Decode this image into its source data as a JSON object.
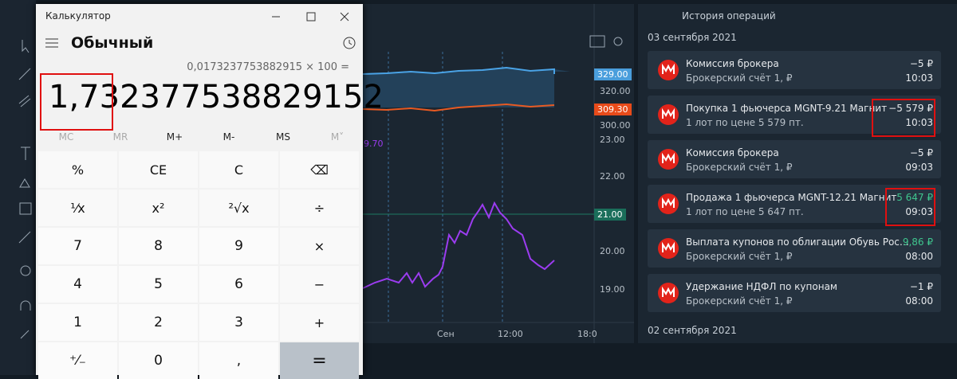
{
  "calculator": {
    "title": "Калькулятор",
    "mode": "Обычный",
    "expression": "0,0173237753882915 × 100 =",
    "display": "1,732377538829152",
    "memory": [
      "MC",
      "MR",
      "M+",
      "M-",
      "MS",
      "M˅"
    ],
    "keys": [
      [
        "%",
        "CE",
        "C",
        "⌫"
      ],
      [
        "¹⁄x",
        "x²",
        "²√x",
        "÷"
      ],
      [
        "7",
        "8",
        "9",
        "×"
      ],
      [
        "4",
        "5",
        "6",
        "−"
      ],
      [
        "1",
        "2",
        "3",
        "+"
      ],
      [
        "⁺⁄₋",
        "0",
        ",",
        "="
      ]
    ]
  },
  "chart": {
    "top_labels": [
      "329.00",
      "320.00",
      "309.30",
      "300.00"
    ],
    "bottom_labels": [
      "23.00",
      "22.00",
      "21.00",
      "20.00",
      "19.00"
    ],
    "series_label": "9.70",
    "x_labels": [
      "Сен",
      "12:00",
      "18:0"
    ]
  },
  "history": {
    "title": "История операций",
    "date": "03 сентября 2021",
    "next_date": "02 сентября 2021",
    "items": [
      {
        "title": "Комиссия брокера",
        "subtitle": "Брокерский счёт 1, ₽",
        "amount": "−5 ₽",
        "time": "10:03",
        "amount_color": "#e6e9ec"
      },
      {
        "title": "Покупка 1 фьючерса MGNT-9.21 Магнит",
        "subtitle": "1 лот по цене 5 579 пт.",
        "amount": "−5 579 ₽",
        "time": "10:03",
        "amount_color": "#e6e9ec"
      },
      {
        "title": "Комиссия брокера",
        "subtitle": "Брокерский счёт 1, ₽",
        "amount": "−5 ₽",
        "time": "09:03",
        "amount_color": "#e6e9ec"
      },
      {
        "title": "Продажа 1 фьючерса MGNT-12.21 Магнит",
        "subtitle": "1 лот по цене 5 647 пт.",
        "amount": "5 647 ₽",
        "time": "09:03",
        "amount_color": "#3fc68e"
      },
      {
        "title": "Выплата купонов по облигации Обувь Рос…",
        "subtitle": "Брокерский счёт 1, ₽",
        "amount": "9,86 ₽",
        "time": "08:00",
        "amount_color": "#3fc68e"
      },
      {
        "title": "Удержание НДФЛ по купонам",
        "subtitle": "Брокерский счёт 1, ₽",
        "amount": "−1 ₽",
        "time": "08:00",
        "amount_color": "#e6e9ec"
      }
    ]
  }
}
